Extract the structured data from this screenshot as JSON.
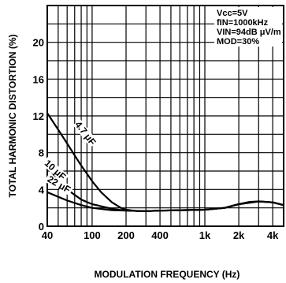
{
  "chart_data": {
    "type": "line",
    "xlabel": "MODULATION FREQUENCY (Hz)",
    "ylabel": "TOTAL HARMONIC DISTORTION (%)",
    "x_scale": "log",
    "xlim": [
      40,
      5000
    ],
    "ylim": [
      0,
      24
    ],
    "grid": true,
    "x_ticks": [
      {
        "value": 40,
        "label": "40"
      },
      {
        "value": 100,
        "label": "100"
      },
      {
        "value": 200,
        "label": "200"
      },
      {
        "value": 400,
        "label": "400"
      },
      {
        "value": 1000,
        "label": "1k"
      },
      {
        "value": 2000,
        "label": "2k"
      },
      {
        "value": 4000,
        "label": "4k"
      }
    ],
    "y_ticks": [
      {
        "value": 0,
        "label": "0"
      },
      {
        "value": 4,
        "label": "4"
      },
      {
        "value": 8,
        "label": "8"
      },
      {
        "value": 12,
        "label": "12"
      },
      {
        "value": 16,
        "label": "16"
      },
      {
        "value": 20,
        "label": "20"
      }
    ],
    "conditions": [
      "Vcc=5V",
      "fIN=1000kHz",
      "VIN=94dB μV/m",
      "MOD=30%"
    ],
    "series": [
      {
        "name": "4.7 μF",
        "x": [
          40,
          50,
          60,
          70,
          80,
          100,
          120,
          150,
          180,
          200,
          250,
          300,
          400,
          600,
          1000,
          1500,
          2000,
          2500,
          3000,
          4000,
          5000
        ],
        "y": [
          12.3,
          10.5,
          9.0,
          7.7,
          6.6,
          4.9,
          3.7,
          2.6,
          2.0,
          1.8,
          1.65,
          1.65,
          1.7,
          1.75,
          1.8,
          2.0,
          2.4,
          2.65,
          2.7,
          2.6,
          2.3
        ]
      },
      {
        "name": "10 μF",
        "x": [
          40,
          50,
          60,
          80,
          100,
          150,
          200,
          300,
          400,
          1000,
          1500,
          2000,
          3000,
          4000,
          5000
        ],
        "y": [
          6.5,
          5.0,
          4.0,
          2.9,
          2.4,
          1.9,
          1.7,
          1.65,
          1.7,
          1.8,
          2.0,
          2.4,
          2.7,
          2.6,
          2.3
        ]
      },
      {
        "name": "22 μF",
        "x": [
          40,
          50,
          60,
          80,
          100,
          150,
          200,
          300,
          400,
          1000,
          1500,
          2000,
          3000,
          4000,
          5000
        ],
        "y": [
          3.7,
          3.2,
          2.8,
          2.3,
          2.0,
          1.75,
          1.7,
          1.65,
          1.7,
          1.8,
          2.0,
          2.4,
          2.7,
          2.6,
          2.3
        ]
      }
    ]
  }
}
